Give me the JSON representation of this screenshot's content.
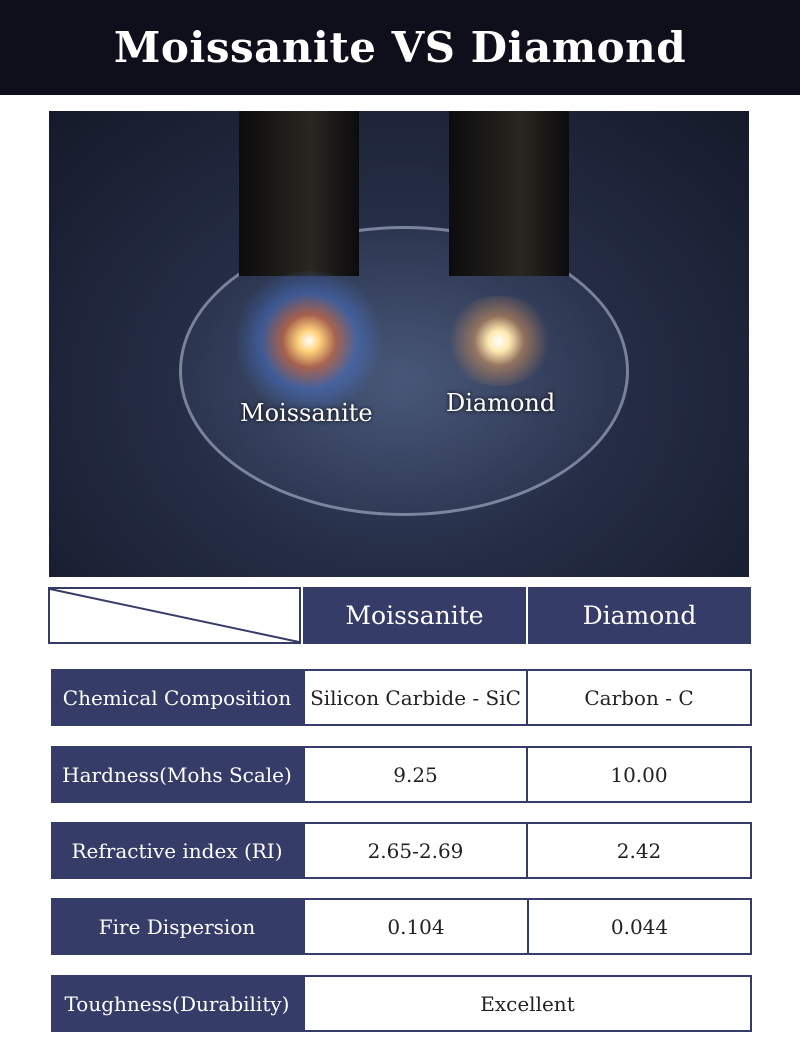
{
  "title": "Moissanite VS Diamond",
  "photo": {
    "labels": {
      "moissanite": "Moissanite",
      "diamond": "Diamond"
    }
  },
  "table": {
    "columns": [
      "Moissanite",
      "Diamond"
    ],
    "rows": [
      {
        "label": "Chemical Composition",
        "moissanite": "Silicon Carbide - SiC",
        "diamond": "Carbon - C"
      },
      {
        "label": "Hardness(Mohs Scale)",
        "moissanite": "9.25",
        "diamond": "10.00"
      },
      {
        "label": "Refractive index (RI)",
        "moissanite": "2.65-2.69",
        "diamond": "2.42"
      },
      {
        "label": "Fire Dispersion",
        "moissanite": "0.104",
        "diamond": "0.044"
      },
      {
        "label": "Toughness(Durability)",
        "both": "Excellent"
      }
    ]
  },
  "colors": {
    "header": "#363c68",
    "banner": "#0e0f1a"
  }
}
